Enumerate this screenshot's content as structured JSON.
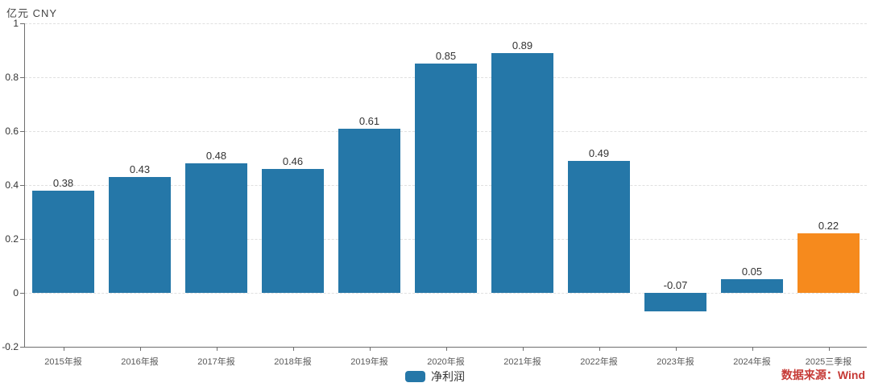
{
  "header": {
    "unit_label": "亿元 CNY"
  },
  "legend": {
    "items": [
      {
        "label": "净利润",
        "color": "#2577a8"
      }
    ]
  },
  "source": {
    "text": "数据来源：Wind",
    "color": "#c63a36"
  },
  "chart_data": {
    "type": "bar",
    "title": "",
    "xlabel": "",
    "ylabel": "亿元 CNY",
    "categories": [
      "2015年报",
      "2016年报",
      "2017年报",
      "2018年报",
      "2019年报",
      "2020年报",
      "2021年报",
      "2022年报",
      "2023年报",
      "2024年报",
      "2025三季报"
    ],
    "series": [
      {
        "name": "净利润",
        "values": [
          0.38,
          0.43,
          0.48,
          0.46,
          0.61,
          0.85,
          0.89,
          0.49,
          -0.07,
          0.05,
          0.22
        ]
      }
    ],
    "bar_color_default": "#2577a8",
    "bar_color_highlight": "#f68a1d",
    "highlight_index": 10,
    "ylim": [
      -0.2,
      1
    ],
    "ytick_step": 0.2,
    "grid": true,
    "legend_position": "bottom-center"
  }
}
